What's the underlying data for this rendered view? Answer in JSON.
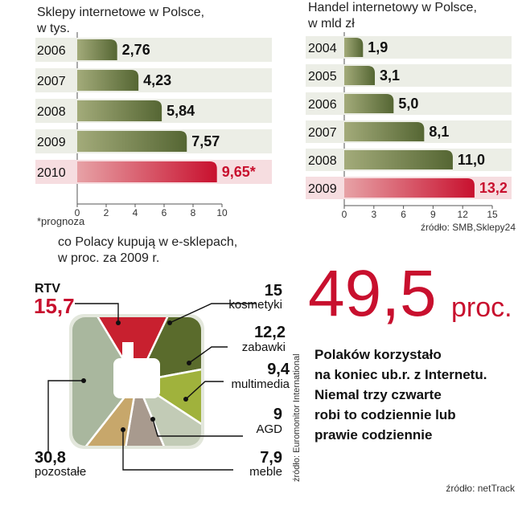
{
  "chart_data": [
    {
      "type": "bar",
      "title": "Sklepy internetowe w Polsce,",
      "subtitle": "w tys.",
      "categories": [
        "2006",
        "2007",
        "2008",
        "2009",
        "2010"
      ],
      "values": [
        2.76,
        4.23,
        5.84,
        7.57,
        9.65
      ],
      "value_labels": [
        "2,76",
        "4,23",
        "5,84",
        "7,57",
        "9,65*"
      ],
      "highlight_index": 4,
      "xlim": [
        0,
        10
      ],
      "xticks": [
        "0",
        "2",
        "4",
        "6",
        "8",
        "10"
      ],
      "footnote": "*prognoza"
    },
    {
      "type": "bar",
      "title": "Handel internetowy w Polsce,",
      "subtitle": "w mld zł",
      "categories": [
        "2004",
        "2005",
        "2006",
        "2007",
        "2008",
        "2009"
      ],
      "values": [
        1.9,
        3.1,
        5.0,
        8.1,
        11.0,
        13.2
      ],
      "value_labels": [
        "1,9",
        "3,1",
        "5,0",
        "8,1",
        "11,0",
        "13,2"
      ],
      "highlight_index": 5,
      "xlim": [
        0,
        15
      ],
      "xticks": [
        "0",
        "3",
        "6",
        "9",
        "12",
        "15"
      ],
      "source": "źródło: SMB,Sklepy24"
    },
    {
      "type": "pie",
      "title": "co Polacy kupują w e-sklepach,",
      "subtitle": "w proc. za 2009 r.",
      "slices": [
        {
          "label": "RTV",
          "value": 15.7,
          "value_label": "15,7",
          "color": "#c8202f"
        },
        {
          "label": "kosmetyki",
          "value": 15,
          "value_label": "15",
          "color": "#5a6b2c"
        },
        {
          "label": "zabawki",
          "value": 12.2,
          "value_label": "12,2",
          "color": "#a0b23c"
        },
        {
          "label": "multimedia",
          "value": 9.4,
          "value_label": "9,4",
          "color": "#c2cbb6"
        },
        {
          "label": "AGD",
          "value": 9,
          "value_label": "9",
          "color": "#a89a8e"
        },
        {
          "label": "meble",
          "value": 7.9,
          "value_label": "7,9",
          "color": "#c7a76b"
        },
        {
          "label": "pozostałe",
          "value": 30.8,
          "value_label": "30,8",
          "color": "#a9b79e"
        }
      ],
      "source": "źródło: Euromonitor International"
    }
  ],
  "stat": {
    "number": "49,5",
    "unit": "proc.",
    "text_lines": [
      "Polaków korzystało",
      "na koniec ub.r. z Internetu.",
      "Niemal trzy czwarte",
      "robi to codziennie lub",
      "prawie codziennie"
    ],
    "source": "źródło: netTrack"
  },
  "colors": {
    "bar_olive": "#556633",
    "bar_olive_light": "#a3ab7a",
    "bar_red": "#c8102e",
    "bar_red_light": "#e7a2a6",
    "accent_red": "#c8102e"
  }
}
